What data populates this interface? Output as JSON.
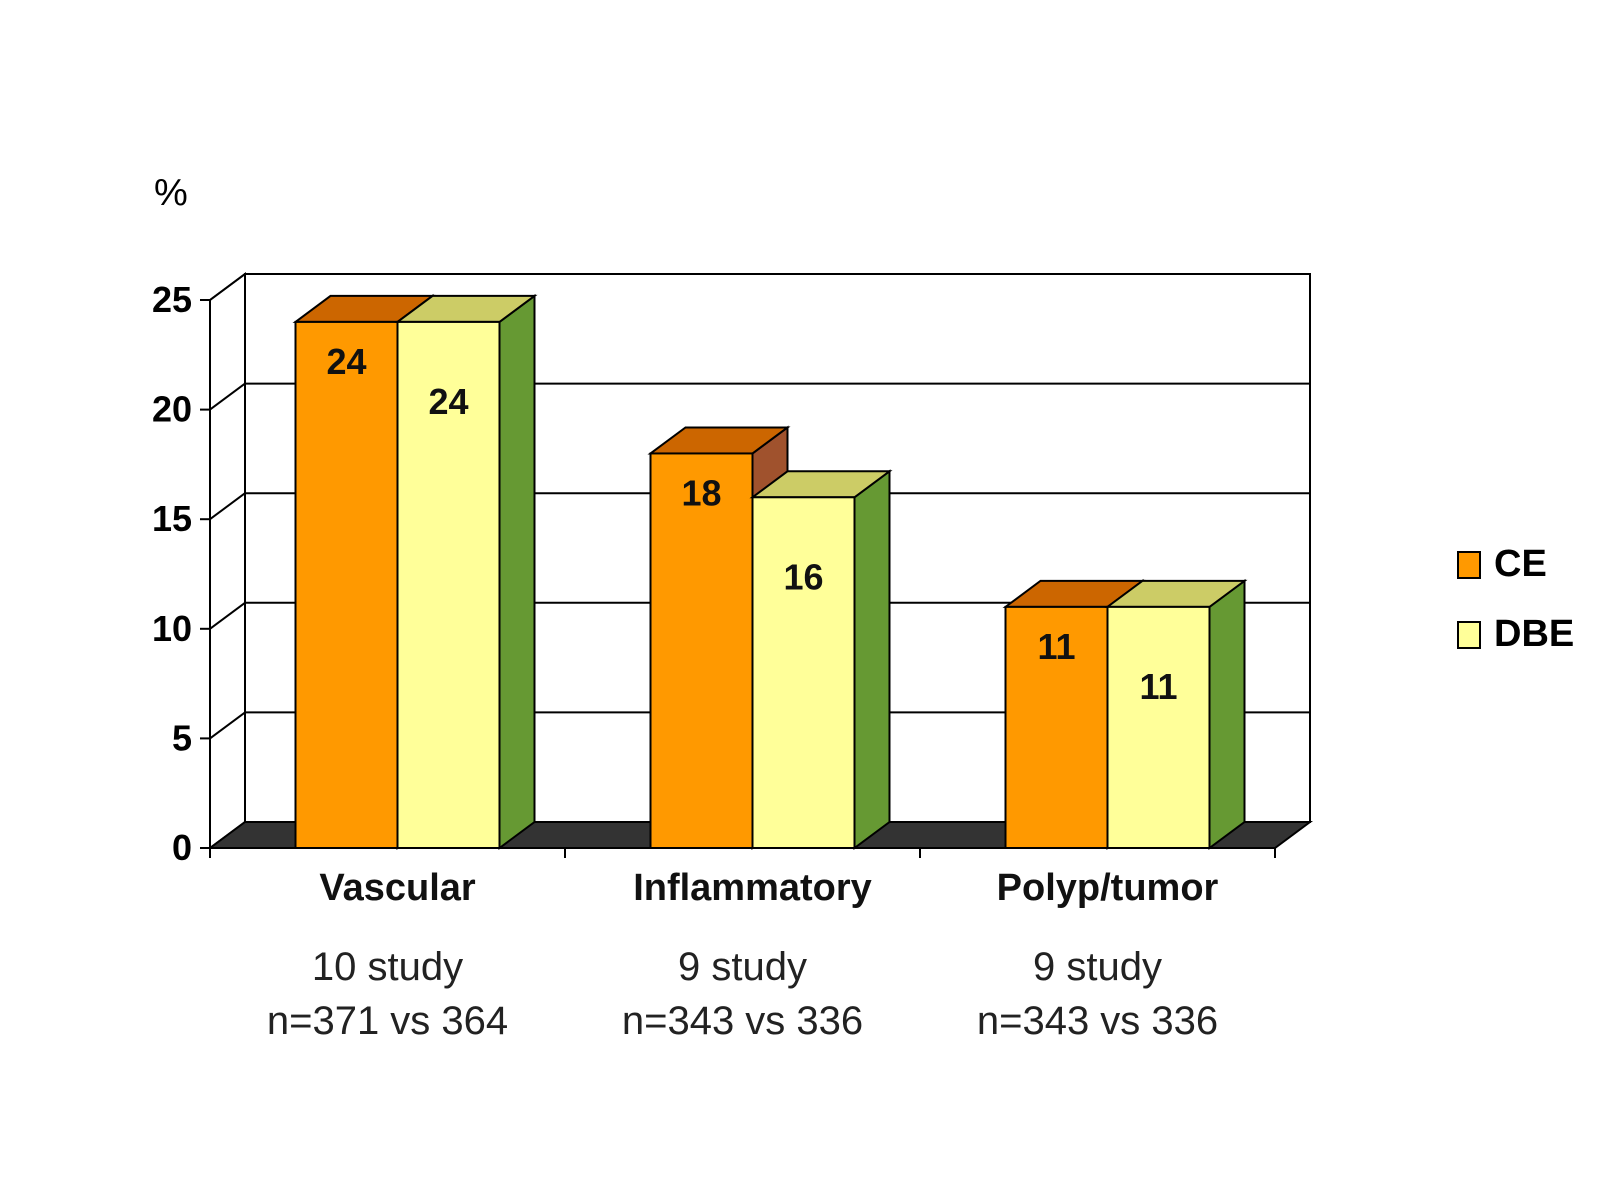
{
  "chart_data": {
    "type": "bar",
    "ylabel": "%",
    "ylim": [
      0,
      25
    ],
    "yticks": [
      0,
      5,
      10,
      15,
      20,
      25
    ],
    "grid": true,
    "legend_position": "right",
    "categories": [
      "Vascular",
      "Inflammatory",
      "Polyp/tumor"
    ],
    "category_notes": [
      [
        "10 study",
        "n=371 vs 364"
      ],
      [
        "9 study",
        "n=343 vs 336"
      ],
      [
        "9 study",
        "n=343 vs 336"
      ]
    ],
    "series": [
      {
        "name": "CE",
        "values": [
          24,
          18,
          11
        ],
        "labels": [
          "24",
          "18",
          "11"
        ],
        "color": "#ff9900",
        "top_color": "#cc6600",
        "side_color": "#a0522d"
      },
      {
        "name": "DBE",
        "values": [
          24,
          16,
          11
        ],
        "labels": [
          "24",
          "16",
          "11"
        ],
        "color": "#ffff99",
        "top_color": "#cccc66",
        "side_color": "#669933"
      }
    ]
  }
}
